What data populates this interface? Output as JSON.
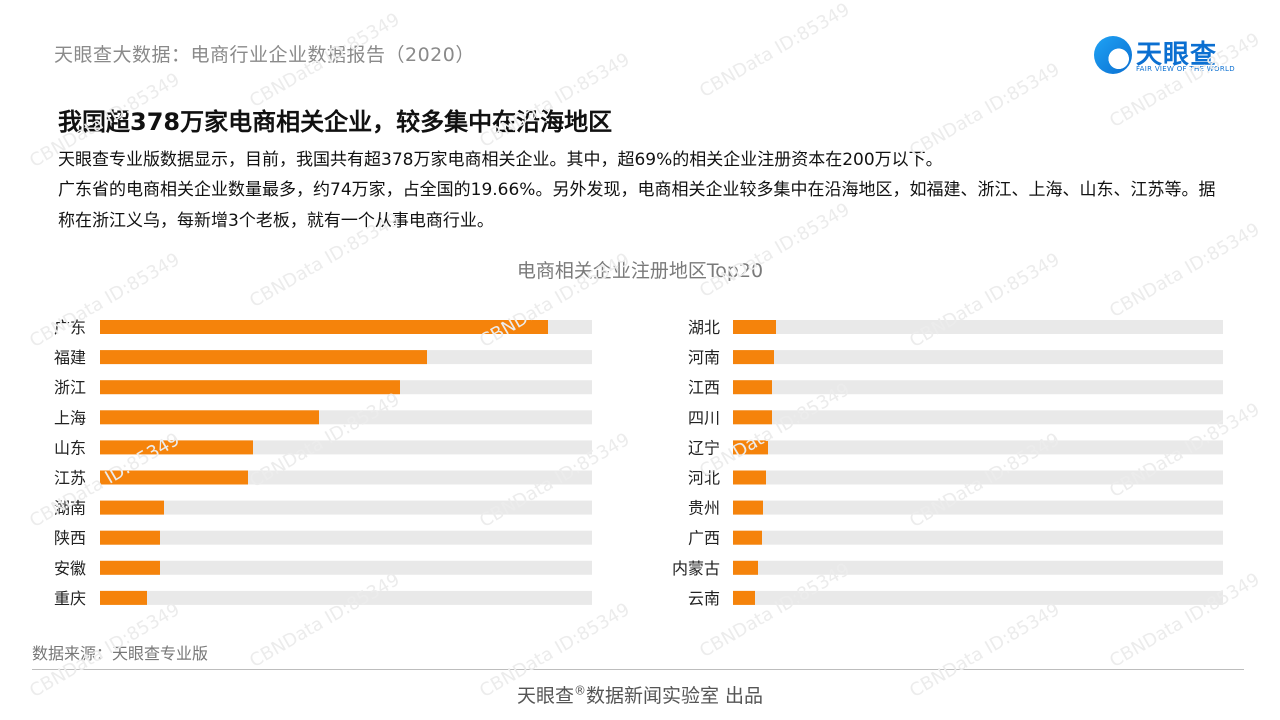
{
  "header": {
    "report_title": "天眼查大数据：电商行业企业数据报告（2020）",
    "logo_name": "天眼查",
    "logo_tagline": "FAIR VIEW OF THE WORLD"
  },
  "article": {
    "headline": "我国超378万家电商相关企业，较多集中在沿海地区",
    "para1": "天眼查专业版数据显示，目前，我国共有超378万家电商相关企业。其中，超69%的相关企业注册资本在200万以下。",
    "para2": "广东省的电商相关企业数量最多，约74万家，占全国的19.66%。另外发现，电商相关企业较多集中在沿海地区，如福建、浙江、上海、山东、江苏等。据称在浙江义乌，每新增3个老板，就有一个从事电商行业。"
  },
  "chart_data": {
    "type": "bar",
    "orientation": "horizontal",
    "title": "电商相关企业注册地区Top20",
    "unit": "ratio of track (0-1)",
    "colors": {
      "bar": "#f5830b",
      "track": "#e9e9e9"
    },
    "panels": [
      {
        "categories": [
          "广东",
          "福建",
          "浙江",
          "上海",
          "山东",
          "江苏",
          "湖南",
          "陕西",
          "安徽",
          "重庆"
        ],
        "values": [
          0.91,
          0.665,
          0.61,
          0.445,
          0.31,
          0.3,
          0.13,
          0.122,
          0.122,
          0.095
        ]
      },
      {
        "categories": [
          "湖北",
          "河南",
          "江西",
          "四川",
          "辽宁",
          "河北",
          "贵州",
          "广西",
          "内蒙古",
          "云南"
        ],
        "values": [
          0.088,
          0.084,
          0.08,
          0.08,
          0.072,
          0.068,
          0.062,
          0.06,
          0.052,
          0.044
        ]
      }
    ]
  },
  "footer": {
    "source": "数据来源：天眼查专业版",
    "credit_a": "天眼查",
    "credit_mark": "®",
    "credit_b": "数据新闻实验室 出品"
  },
  "watermark_text": "CBNData ID:85349"
}
